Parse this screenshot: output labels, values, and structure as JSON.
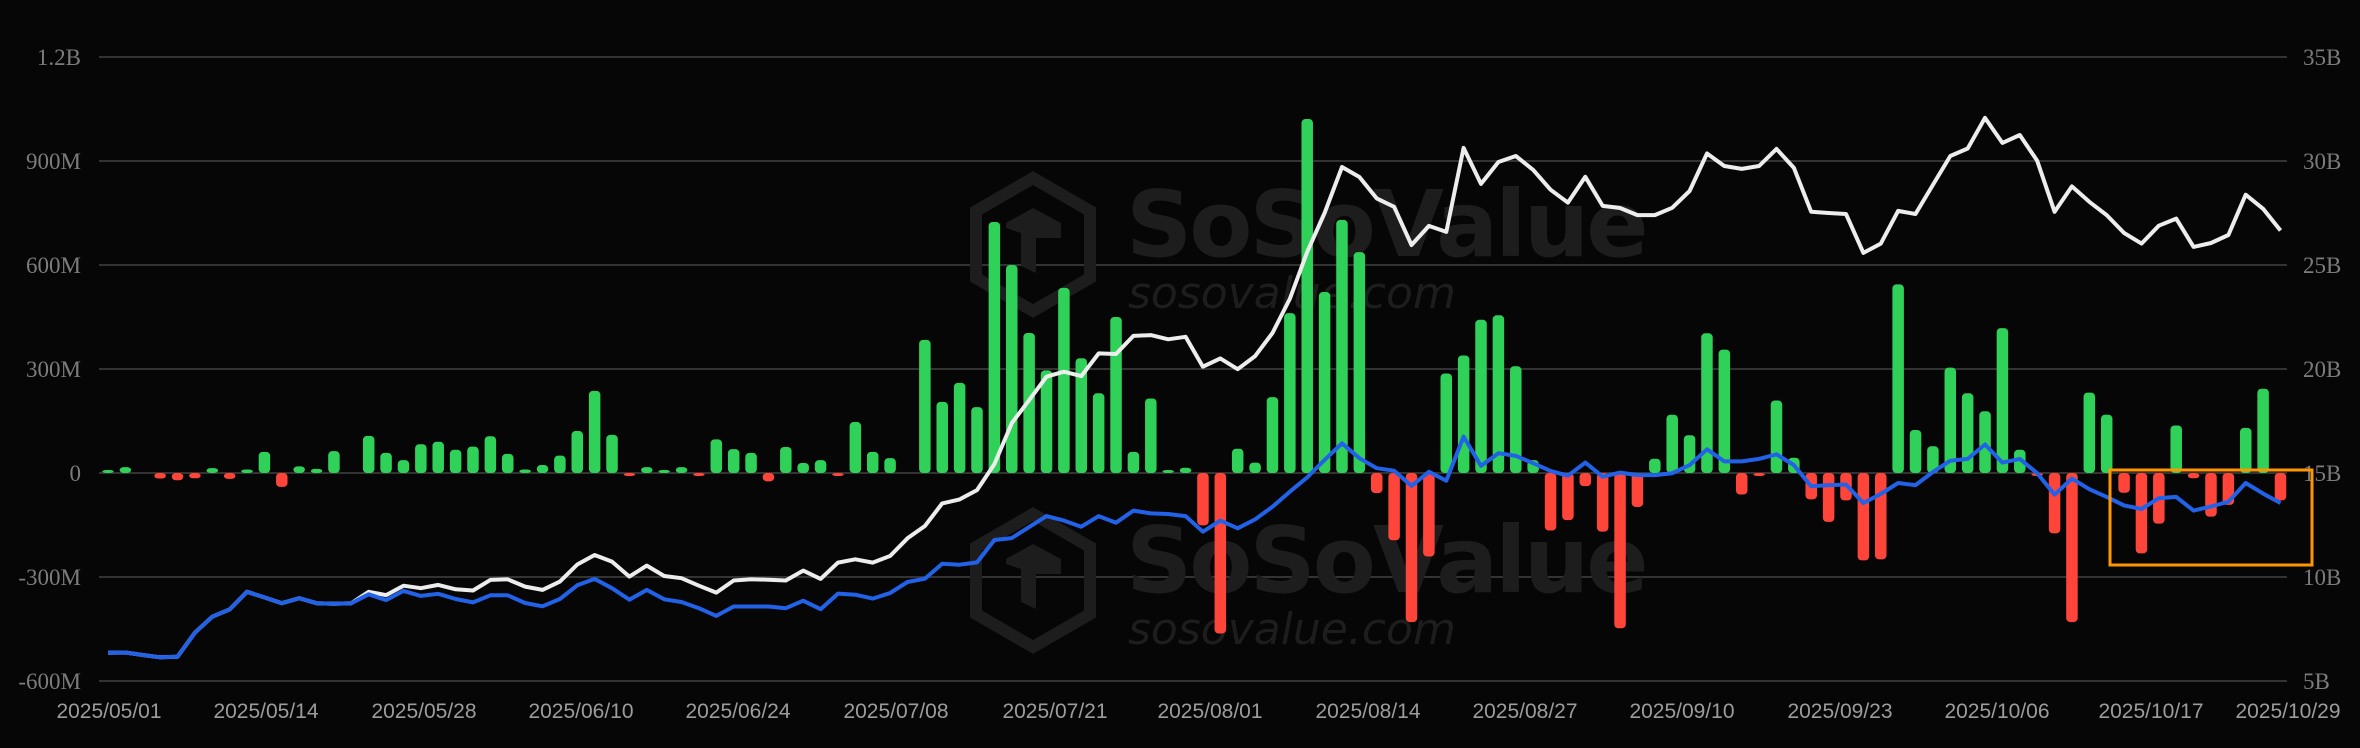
{
  "watermark": {
    "brand": "SoSoValue",
    "site": "sosovalue.com"
  },
  "colors": {
    "background": "#060606",
    "grid": "#333333",
    "positive_bar": "#30D158",
    "negative_bar": "#FF453A",
    "line_white": "#EDEDED",
    "line_blue": "#2162E8",
    "highlight_box": "#FF9500"
  },
  "chart_data": {
    "type": "bar+line",
    "grid": true,
    "legend": "none",
    "x_tick_labels": [
      "2025/05/01",
      "2025/05/14",
      "2025/05/28",
      "2025/06/10",
      "2025/06/24",
      "2025/07/08",
      "2025/07/21",
      "2025/08/01",
      "2025/08/14",
      "2025/08/27",
      "2025/09/10",
      "2025/09/23",
      "2025/10/06",
      "2025/10/17",
      "2025/10/29"
    ],
    "left_axis": {
      "unit": "USD (M)",
      "range": [
        -600,
        1200
      ],
      "ticks": [
        1200,
        900,
        600,
        300,
        0,
        -300,
        -600
      ],
      "tick_labels": [
        "1.2B",
        "900M",
        "600M",
        "300M",
        "0",
        "-300M",
        "-600M"
      ]
    },
    "right_axis": {
      "unit": "USD (B)",
      "range": [
        5,
        35
      ],
      "ticks": [
        35,
        30,
        25,
        20,
        15,
        10,
        5
      ],
      "tick_labels": [
        "35B",
        "30B",
        "25B",
        "20B",
        "15B",
        "10B",
        "5B"
      ]
    },
    "bars_axis": "left",
    "bars": [
      4,
      17,
      0,
      -16,
      -21,
      -15,
      14,
      -17,
      10,
      61,
      -40,
      19,
      12,
      63,
      0,
      107,
      58,
      37,
      83,
      90,
      67,
      76,
      106,
      55,
      10,
      23,
      50,
      121,
      237,
      110,
      -3,
      17,
      5,
      17,
      -8,
      97,
      69,
      58,
      -24,
      75,
      29,
      37,
      -3,
      147,
      61,
      43,
      0,
      384,
      205,
      260,
      190,
      724,
      600,
      404,
      296,
      534,
      331,
      230,
      450,
      61,
      215,
      3,
      15,
      -151,
      -463,
      70,
      30,
      219,
      461,
      1021,
      522,
      730,
      637,
      -58,
      -194,
      -430,
      -241,
      287,
      339,
      442,
      455,
      308,
      37,
      -166,
      -136,
      -38,
      -169,
      -448,
      -98,
      41,
      168,
      109,
      403,
      356,
      -62,
      -2,
      209,
      44,
      -76,
      -141,
      -79,
      -252,
      -249,
      544,
      124,
      77,
      304,
      230,
      178,
      418,
      67,
      -7,
      -174,
      -430,
      232,
      168,
      -57,
      -232,
      -146,
      137,
      -15,
      -126,
      -92,
      130,
      243,
      -79
    ],
    "series": [
      {
        "axis": "right",
        "color": "#EDEDED",
        "values": [
          6.36,
          6.37,
          6.25,
          6.14,
          6.17,
          7.32,
          8.09,
          8.44,
          9.29,
          9.02,
          8.74,
          8.98,
          8.74,
          8.71,
          8.74,
          9.29,
          9.13,
          9.58,
          9.46,
          9.62,
          9.41,
          9.35,
          9.86,
          9.89,
          9.54,
          9.38,
          9.78,
          10.6,
          11.06,
          10.74,
          10.02,
          10.55,
          10.05,
          9.94,
          9.58,
          9.25,
          9.83,
          9.89,
          9.87,
          9.83,
          10.31,
          9.91,
          10.69,
          10.85,
          10.69,
          11.01,
          11.86,
          12.45,
          13.54,
          13.73,
          14.18,
          15.43,
          17.4,
          18.5,
          19.63,
          19.87,
          19.66,
          20.75,
          20.72,
          21.59,
          21.63,
          21.43,
          21.55,
          20.11,
          20.51,
          19.99,
          20.62,
          21.73,
          23.37,
          25.63,
          27.5,
          29.71,
          29.23,
          28.2,
          27.8,
          25.96,
          26.88,
          26.59,
          30.63,
          28.9,
          29.95,
          30.24,
          29.57,
          28.62,
          28.0,
          29.24,
          27.84,
          27.74,
          27.4,
          27.4,
          27.75,
          28.56,
          30.36,
          29.76,
          29.62,
          29.76,
          30.58,
          29.67,
          27.56,
          27.5,
          27.45,
          25.58,
          26.03,
          27.6,
          27.45,
          28.85,
          30.24,
          30.6,
          32.07,
          30.87,
          31.25,
          30.01,
          27.56,
          28.78,
          28.04,
          27.4,
          26.54,
          26.03,
          26.89,
          27.23,
          25.87,
          26.06,
          26.44,
          28.38,
          27.7,
          26.66
        ]
      },
      {
        "axis": "right",
        "color": "#2162E8",
        "values": [
          6.36,
          6.37,
          6.25,
          6.14,
          6.17,
          7.32,
          8.09,
          8.44,
          9.29,
          9.02,
          8.74,
          8.98,
          8.74,
          8.71,
          8.74,
          9.17,
          8.89,
          9.33,
          9.09,
          9.19,
          8.94,
          8.78,
          9.12,
          9.12,
          8.75,
          8.59,
          8.94,
          9.6,
          9.91,
          9.46,
          8.91,
          9.38,
          8.93,
          8.8,
          8.5,
          8.13,
          8.58,
          8.58,
          8.58,
          8.5,
          8.86,
          8.45,
          9.2,
          9.15,
          8.96,
          9.23,
          9.76,
          9.92,
          10.64,
          10.59,
          10.7,
          11.78,
          11.87,
          12.4,
          12.93,
          12.71,
          12.42,
          12.93,
          12.61,
          13.19,
          13.06,
          13.03,
          12.93,
          12.18,
          12.71,
          12.34,
          12.77,
          13.38,
          14.1,
          14.79,
          15.63,
          16.43,
          15.71,
          15.23,
          15.11,
          14.38,
          15.06,
          14.63,
          16.75,
          15.34,
          15.95,
          15.82,
          15.47,
          15.1,
          14.87,
          15.5,
          14.82,
          15.02,
          14.9,
          14.9,
          14.99,
          15.38,
          16.14,
          15.56,
          15.56,
          15.68,
          15.9,
          15.38,
          14.36,
          14.42,
          14.44,
          13.56,
          13.99,
          14.52,
          14.42,
          15.05,
          15.59,
          15.68,
          16.37,
          15.5,
          15.68,
          14.99,
          13.96,
          14.73,
          14.22,
          13.85,
          13.44,
          13.27,
          13.79,
          13.85,
          13.19,
          13.39,
          13.62,
          14.52,
          14.01,
          13.56
        ]
      }
    ],
    "highlight": {
      "from_label": "2025/10/17",
      "to_label": "2025/10/29",
      "color": "#FF9500"
    }
  }
}
